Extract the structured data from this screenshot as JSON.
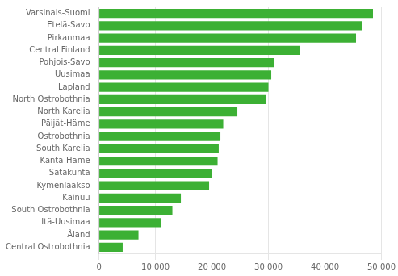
{
  "chart_data": {
    "type": "bar",
    "orientation": "horizontal",
    "categories": [
      "Central Ostrobothnia",
      "Åland",
      "Itä-Uusimaa",
      "South Ostrobothnia",
      "Kainuu",
      "Kymenlaakso",
      "Satakunta",
      "Kanta-Häme",
      "South Karelia",
      "Ostrobothnia",
      "Päijät-Häme",
      "North Karelia",
      "North Ostrobothnia",
      "Lapland",
      "Uusimaa",
      "Pohjois-Savo",
      "Central Finland",
      "Pirkanmaa",
      "Etelä-Savo",
      "Varsinais-Suomi"
    ],
    "values": [
      4200,
      7000,
      11000,
      13000,
      14500,
      19500,
      20000,
      21000,
      21200,
      21500,
      22000,
      24500,
      29500,
      30000,
      30500,
      31000,
      35500,
      45500,
      46500,
      48500
    ],
    "color": "#3cb034",
    "xlim": [
      0,
      50000
    ],
    "xticks": [
      0,
      {
        "value": 10000,
        "label": "10 000"
      },
      {
        "value": 20000,
        "label": "20 000"
      },
      {
        "value": 30000,
        "label": "30 000"
      },
      {
        "value": 40000,
        "label": "40 000"
      },
      {
        "value": 50000,
        "label": "50 000"
      }
    ],
    "grid": true
  }
}
